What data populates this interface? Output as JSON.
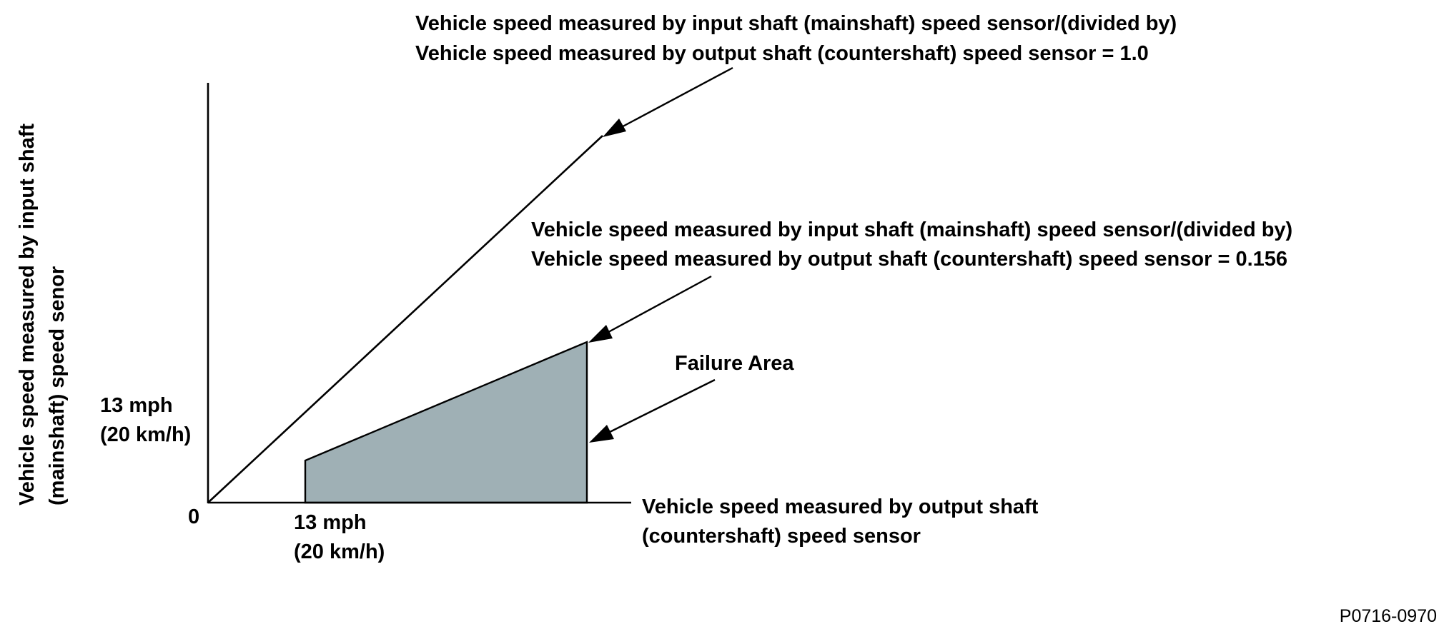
{
  "diagram": {
    "ratio_line_label": [
      "Vehicle speed measured by input shaft (mainshaft) speed sensor/(divided by)",
      "Vehicle speed measured by output shaft (countershaft) speed sensor = 1.0"
    ],
    "threshold_line_label": [
      "Vehicle speed measured by input shaft (mainshaft) speed sensor/(divided by)",
      "Vehicle speed measured by output shaft (countershaft) speed sensor = 0.156"
    ],
    "failure_area_label": "Failure Area",
    "y_axis_label": [
      "Vehicle speed measured by input shaft",
      "(mainshaft) speed senor"
    ],
    "x_axis_label": [
      "Vehicle speed measured by output shaft",
      "(countershaft) speed sensor"
    ],
    "origin_label": "0",
    "y_tick_label": [
      "13 mph",
      "(20 km/h)"
    ],
    "x_tick_label": [
      "13 mph",
      "(20 km/h)"
    ],
    "figure_code": "P0716-0970",
    "colors": {
      "failure_area_fill": "#9fb0b5",
      "line": "#000000"
    }
  }
}
